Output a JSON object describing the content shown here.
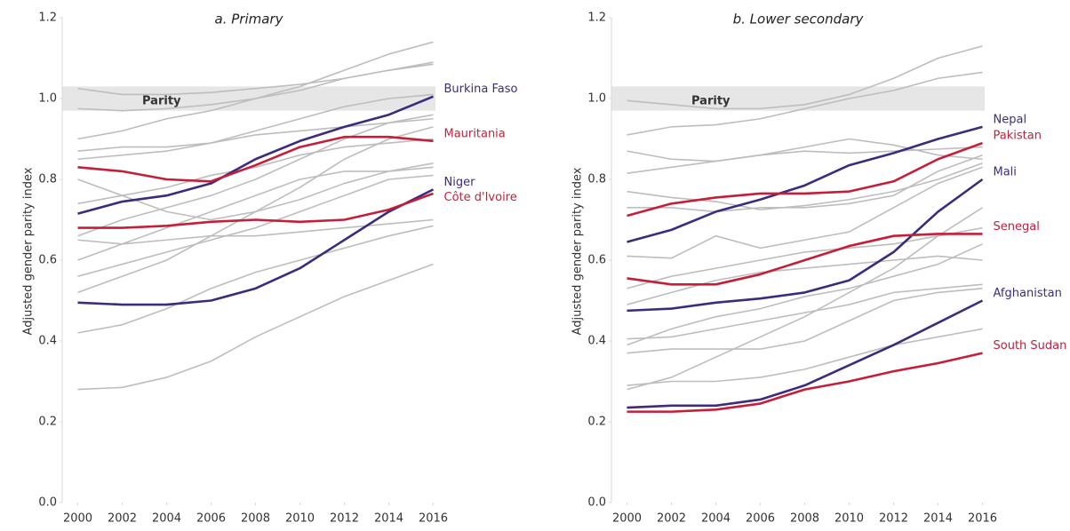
{
  "chart_data": [
    {
      "type": "line",
      "title": "a. Primary",
      "y_label": "Adjusted gender parity index",
      "annotation": "Parity",
      "parity_band": [
        0.97,
        1.03
      ],
      "x": [
        2000,
        2002,
        2004,
        2006,
        2008,
        2010,
        2012,
        2014,
        2016
      ],
      "xlim": [
        1999.3,
        2016.1
      ],
      "xticks": [
        2000,
        2002,
        2004,
        2006,
        2008,
        2010,
        2012,
        2014,
        2016
      ],
      "ylim": [
        0,
        1.2
      ],
      "yticks": [
        {
          "value": 0,
          "label": "0.0"
        },
        0.2,
        0.4,
        0.6,
        0.8,
        {
          "value": 1,
          "label": "1.0"
        },
        1.2
      ],
      "series": [
        {
          "color": "#bdbdbd",
          "values": [
            0.28,
            0.285,
            0.31,
            0.35,
            0.41,
            0.46,
            0.51,
            0.55,
            0.59
          ]
        },
        {
          "color": "#bdbdbd",
          "values": [
            0.42,
            0.44,
            0.48,
            0.53,
            0.57,
            0.6,
            0.63,
            0.66,
            0.685
          ]
        },
        {
          "color": "#bdbdbd",
          "values": [
            0.52,
            0.56,
            0.6,
            0.66,
            0.72,
            0.78,
            0.85,
            0.9,
            0.93
          ]
        },
        {
          "color": "#bdbdbd",
          "values": [
            0.56,
            0.59,
            0.62,
            0.65,
            0.68,
            0.72,
            0.76,
            0.8,
            0.81
          ]
        },
        {
          "color": "#bdbdbd",
          "values": [
            0.6,
            0.64,
            0.68,
            0.72,
            0.76,
            0.8,
            0.82,
            0.82,
            0.83
          ]
        },
        {
          "color": "#bdbdbd",
          "values": [
            0.66,
            0.7,
            0.73,
            0.76,
            0.8,
            0.85,
            0.9,
            0.94,
            0.96
          ]
        },
        {
          "color": "#bdbdbd",
          "values": [
            0.8,
            0.76,
            0.72,
            0.7,
            0.72,
            0.75,
            0.79,
            0.82,
            0.84
          ]
        },
        {
          "color": "#bdbdbd",
          "values": [
            0.85,
            0.86,
            0.87,
            0.89,
            0.92,
            0.95,
            0.98,
            1.0,
            1.01
          ]
        },
        {
          "color": "#bdbdbd",
          "values": [
            0.9,
            0.92,
            0.95,
            0.97,
            1.0,
            1.03,
            1.07,
            1.11,
            1.14
          ]
        },
        {
          "color": "#bdbdbd",
          "values": [
            0.975,
            0.97,
            0.975,
            0.985,
            1.0,
            1.02,
            1.05,
            1.07,
            1.09
          ]
        },
        {
          "color": "#bdbdbd",
          "values": [
            1.025,
            1.01,
            1.01,
            1.015,
            1.025,
            1.035,
            1.05,
            1.07,
            1.085
          ]
        },
        {
          "color": "#bdbdbd",
          "values": [
            0.87,
            0.88,
            0.88,
            0.89,
            0.91,
            0.92,
            0.93,
            0.94,
            0.95
          ]
        },
        {
          "color": "#bdbdbd",
          "values": [
            0.74,
            0.76,
            0.78,
            0.81,
            0.83,
            0.86,
            0.88,
            0.89,
            0.9
          ]
        },
        {
          "color": "#bdbdbd",
          "values": [
            0.65,
            0.64,
            0.65,
            0.66,
            0.66,
            0.67,
            0.68,
            0.69,
            0.7
          ]
        },
        {
          "name": "Burkina Faso",
          "color": "#3d2b7c",
          "values": [
            0.715,
            0.745,
            0.76,
            0.79,
            0.85,
            0.895,
            0.93,
            0.96,
            1.005
          ]
        },
        {
          "name": "Mauritania",
          "color": "#c41f3a",
          "values": [
            0.83,
            0.82,
            0.8,
            0.795,
            0.835,
            0.88,
            0.905,
            0.905,
            0.895
          ]
        },
        {
          "name": "Niger",
          "color": "#3d2b7c",
          "values": [
            0.495,
            0.49,
            0.49,
            0.5,
            0.53,
            0.58,
            0.65,
            0.72,
            0.775
          ]
        },
        {
          "name": "Côte d'Ivoire",
          "color": "#c41f3a",
          "values": [
            0.68,
            0.68,
            0.685,
            0.695,
            0.7,
            0.695,
            0.7,
            0.725,
            0.765
          ]
        }
      ]
    },
    {
      "type": "line",
      "title": "b. Lower secondary",
      "y_label": "Adjusted gender parity index",
      "annotation": "Parity",
      "parity_band": [
        0.97,
        1.03
      ],
      "x": [
        2000,
        2002,
        2004,
        2006,
        2008,
        2010,
        2012,
        2014,
        2016
      ],
      "xlim": [
        1999.3,
        2016.1
      ],
      "xticks": [
        2000,
        2002,
        2004,
        2006,
        2008,
        2010,
        2012,
        2014,
        2016
      ],
      "ylim": [
        0,
        1.2
      ],
      "yticks": [
        {
          "value": 0,
          "label": "0.0"
        },
        0.2,
        0.4,
        0.6,
        0.8,
        {
          "value": 1,
          "label": "1.0"
        },
        1.2
      ],
      "series": [
        {
          "color": "#bdbdbd",
          "values": [
            0.995,
            0.985,
            0.975,
            0.975,
            0.985,
            1.01,
            1.05,
            1.1,
            1.13
          ]
        },
        {
          "color": "#bdbdbd",
          "values": [
            0.91,
            0.93,
            0.935,
            0.95,
            0.975,
            1.0,
            1.02,
            1.05,
            1.065
          ]
        },
        {
          "color": "#bdbdbd",
          "values": [
            0.87,
            0.85,
            0.845,
            0.86,
            0.88,
            0.9,
            0.885,
            0.86,
            0.85
          ]
        },
        {
          "color": "#bdbdbd",
          "values": [
            0.815,
            0.83,
            0.845,
            0.86,
            0.87,
            0.865,
            0.87,
            0.875,
            0.88
          ]
        },
        {
          "color": "#bdbdbd",
          "values": [
            0.77,
            0.755,
            0.745,
            0.725,
            0.735,
            0.75,
            0.77,
            0.8,
            0.84
          ]
        },
        {
          "color": "#bdbdbd",
          "values": [
            0.73,
            0.73,
            0.72,
            0.73,
            0.73,
            0.74,
            0.76,
            0.82,
            0.86
          ]
        },
        {
          "color": "#bdbdbd",
          "values": [
            0.61,
            0.605,
            0.66,
            0.63,
            0.65,
            0.67,
            0.73,
            0.79,
            0.83
          ]
        },
        {
          "color": "#bdbdbd",
          "values": [
            0.53,
            0.56,
            0.58,
            0.6,
            0.62,
            0.63,
            0.64,
            0.66,
            0.68
          ]
        },
        {
          "color": "#bdbdbd",
          "values": [
            0.49,
            0.52,
            0.55,
            0.57,
            0.58,
            0.59,
            0.6,
            0.61,
            0.6
          ]
        },
        {
          "color": "#bdbdbd",
          "values": [
            0.39,
            0.43,
            0.46,
            0.48,
            0.51,
            0.53,
            0.56,
            0.59,
            0.64
          ]
        },
        {
          "color": "#bdbdbd",
          "values": [
            0.37,
            0.38,
            0.38,
            0.38,
            0.4,
            0.45,
            0.5,
            0.52,
            0.53
          ]
        },
        {
          "color": "#bdbdbd",
          "values": [
            0.28,
            0.31,
            0.36,
            0.41,
            0.46,
            0.52,
            0.58,
            0.66,
            0.73
          ]
        },
        {
          "color": "#bdbdbd",
          "values": [
            0.29,
            0.3,
            0.3,
            0.31,
            0.33,
            0.36,
            0.39,
            0.41,
            0.43
          ]
        },
        {
          "color": "#bdbdbd",
          "values": [
            0.405,
            0.41,
            0.43,
            0.45,
            0.47,
            0.49,
            0.52,
            0.53,
            0.54
          ]
        },
        {
          "name": "Nepal",
          "color": "#3d2b7c",
          "values": [
            0.645,
            0.675,
            0.72,
            0.75,
            0.785,
            0.835,
            0.865,
            0.9,
            0.93
          ]
        },
        {
          "name": "Pakistan",
          "color": "#c41f3a",
          "values": [
            0.71,
            0.74,
            0.755,
            0.765,
            0.765,
            0.77,
            0.795,
            0.85,
            0.89
          ]
        },
        {
          "name": "Mali",
          "color": "#3d2b7c",
          "values": [
            0.475,
            0.48,
            0.495,
            0.505,
            0.52,
            0.55,
            0.62,
            0.72,
            0.8
          ]
        },
        {
          "name": "Senegal",
          "color": "#c41f3a",
          "values": [
            0.555,
            0.54,
            0.54,
            0.565,
            0.6,
            0.635,
            0.66,
            0.665,
            0.665
          ]
        },
        {
          "name": "Afghanistan",
          "color": "#3d2b7c",
          "values": [
            0.235,
            0.24,
            0.24,
            0.255,
            0.29,
            0.34,
            0.39,
            0.445,
            0.5
          ]
        },
        {
          "name": "South Sudan",
          "color": "#c41f3a",
          "values": [
            0.225,
            0.225,
            0.23,
            0.245,
            0.28,
            0.3,
            0.325,
            0.345,
            0.37
          ]
        }
      ]
    }
  ]
}
